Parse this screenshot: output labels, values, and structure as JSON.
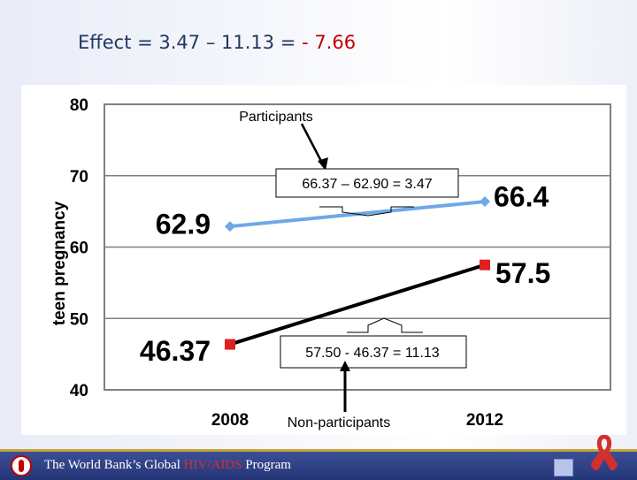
{
  "title": {
    "text_prefix": "Effect = 3.47 – 11.13 = ",
    "text_negative": "- 7.66"
  },
  "chart_data": {
    "type": "line",
    "categories": [
      "2008",
      "2012"
    ],
    "series": [
      {
        "name": "Participants",
        "values": [
          62.9,
          66.37
        ],
        "point_labels": [
          "62.9",
          "66.4"
        ],
        "color": "#6fa8e6",
        "marker": "diamond"
      },
      {
        "name": "Non-participants",
        "values": [
          46.37,
          57.5
        ],
        "point_labels": [
          "46.37",
          "57.5"
        ],
        "color": "#000000",
        "marker": "square",
        "marker_color": "#e02020"
      }
    ],
    "ylabel": "teen pregnancy",
    "ylim": [
      40,
      80
    ],
    "yticks": [
      40,
      50,
      60,
      70,
      80
    ],
    "grid": true,
    "annotations": {
      "participants_calc": "66.37 – 62.90 = 3.47",
      "nonparticipants_calc": "57.50 - 46.37 = 11.13"
    }
  },
  "footer": {
    "text_prefix": "The World Bank’s Global ",
    "text_highlight": "HIV/AIDS",
    "text_suffix": " Program",
    "ribbon_color": "#d32f2f"
  }
}
